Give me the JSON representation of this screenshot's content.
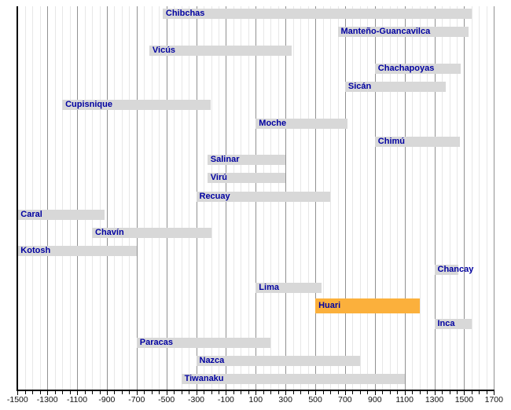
{
  "chart_data": {
    "type": "bar",
    "subtype": "horizontal-timeline",
    "title": "",
    "xlabel": "",
    "ylabel": "",
    "x_axis": {
      "min": -1500,
      "max": 1700,
      "minor_tick_step": 50,
      "labeled_tick_step": 200,
      "grid": "on",
      "tick_labels": [
        "-1500",
        "-1300",
        "-1100",
        "-900",
        "-700",
        "-500",
        "-300",
        "-100",
        "100",
        "300",
        "500",
        "700",
        "900",
        "1100",
        "1300",
        "1500",
        "1700"
      ]
    },
    "series": [
      {
        "label": "Chibchas",
        "from": -525,
        "till": 1550,
        "highlight": false
      },
      {
        "label": "Manteño-Guancavilca",
        "from": 650,
        "till": 1530,
        "highlight": false
      },
      {
        "label": "Vicús",
        "from": -615,
        "till": 340,
        "highlight": false
      },
      {
        "label": "Chachapoyas",
        "from": 900,
        "till": 1475,
        "highlight": false
      },
      {
        "label": "Sicán",
        "from": 700,
        "till": 1375,
        "highlight": false
      },
      {
        "label": "Cupisnique",
        "from": -1200,
        "till": -200,
        "highlight": false
      },
      {
        "label": "Moche",
        "from": 100,
        "till": 715,
        "highlight": false
      },
      {
        "label": "Chimú",
        "from": 900,
        "till": 1470,
        "highlight": false
      },
      {
        "label": "Salinar",
        "from": -225,
        "till": 300,
        "highlight": false
      },
      {
        "label": "Virú",
        "from": -225,
        "till": 300,
        "highlight": false
      },
      {
        "label": "Recuay",
        "from": -300,
        "till": 600,
        "highlight": false
      },
      {
        "label": "Caral",
        "from": -1500,
        "till": -915,
        "highlight": false
      },
      {
        "label": "Chavín",
        "from": -1000,
        "till": -200,
        "highlight": false
      },
      {
        "label": "Kotosh",
        "from": -1500,
        "till": -700,
        "highlight": false
      },
      {
        "label": "Chancay",
        "from": 1300,
        "till": 1460,
        "highlight": false
      },
      {
        "label": "Lima",
        "from": 100,
        "till": 540,
        "highlight": false
      },
      {
        "label": "Huari",
        "from": 500,
        "till": 1200,
        "highlight": true
      },
      {
        "label": "Inca",
        "from": 1300,
        "till": 1550,
        "highlight": false
      },
      {
        "label": "Paracas",
        "from": -700,
        "till": 200,
        "highlight": false
      },
      {
        "label": "Nazca",
        "from": -300,
        "till": 800,
        "highlight": false
      },
      {
        "label": "Tiwanaku",
        "from": -400,
        "till": 1100,
        "highlight": false
      }
    ],
    "colors": {
      "bar": "#d8d8d8",
      "highlight_bar": "#fbb03c",
      "bar_label": "#0000a0",
      "grid_minor": "#e7e7e7",
      "grid_major": "#919191",
      "axis": "#000000",
      "tick_label": "#111111"
    },
    "legend": "none"
  }
}
